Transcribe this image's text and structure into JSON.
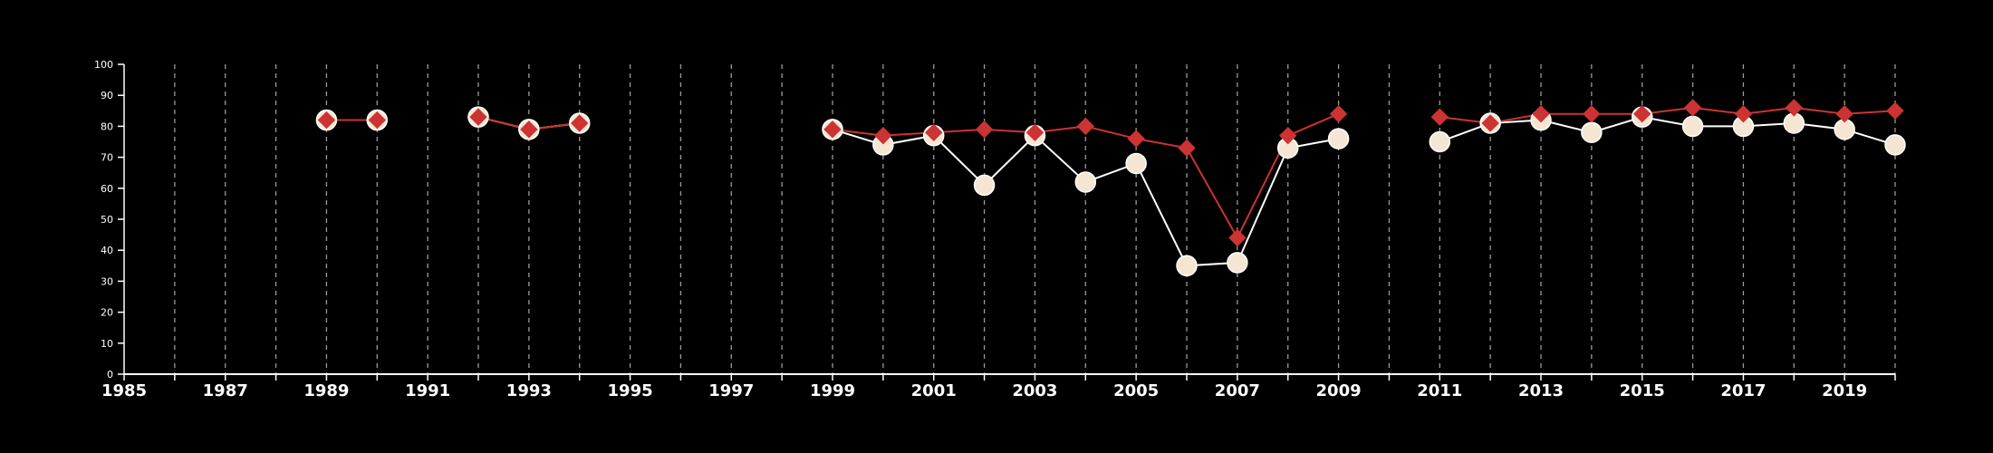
{
  "chart_data": {
    "type": "line",
    "xlim": [
      1985,
      2020
    ],
    "ylim": [
      0,
      100
    ],
    "x_ticks": [
      1985,
      1987,
      1989,
      1991,
      1993,
      1995,
      1997,
      1999,
      2001,
      2003,
      2005,
      2007,
      2009,
      2011,
      2013,
      2015,
      2017,
      2019
    ],
    "y_ticks": [
      0,
      10,
      20,
      30,
      40,
      50,
      60,
      70,
      80,
      90,
      100
    ],
    "vertical_gridlines": "dashed, every year",
    "colors": {
      "background": "#000000",
      "axis": "#ffffff",
      "grid": "#9a9a9a",
      "series_circle": "#f5e6d3",
      "series_circle_line": "#ffffff",
      "series_diamond": "#cc3333"
    },
    "series": [
      {
        "marker": "circle",
        "points": [
          [
            1989,
            82
          ],
          [
            1990,
            82
          ],
          [
            1992,
            83
          ],
          [
            1993,
            79
          ],
          [
            1994,
            81
          ],
          [
            1999,
            79
          ],
          [
            2000,
            74
          ],
          [
            2001,
            77
          ],
          [
            2002,
            61
          ],
          [
            2003,
            77
          ],
          [
            2004,
            62
          ],
          [
            2005,
            68
          ],
          [
            2006,
            35
          ],
          [
            2007,
            36
          ],
          [
            2008,
            73
          ],
          [
            2009,
            76
          ],
          [
            2011,
            75
          ],
          [
            2012,
            81
          ],
          [
            2013,
            82
          ],
          [
            2014,
            78
          ],
          [
            2015,
            83
          ],
          [
            2016,
            80
          ],
          [
            2017,
            80
          ],
          [
            2018,
            81
          ],
          [
            2019,
            79
          ],
          [
            2020,
            74
          ]
        ]
      },
      {
        "marker": "diamond",
        "points": [
          [
            1989,
            82
          ],
          [
            1990,
            82
          ],
          [
            1992,
            83
          ],
          [
            1993,
            79
          ],
          [
            1994,
            81
          ],
          [
            1999,
            79
          ],
          [
            2000,
            77
          ],
          [
            2001,
            78
          ],
          [
            2002,
            79
          ],
          [
            2003,
            78
          ],
          [
            2004,
            80
          ],
          [
            2005,
            76
          ],
          [
            2006,
            73
          ],
          [
            2007,
            44
          ],
          [
            2008,
            77
          ],
          [
            2009,
            84
          ],
          [
            2011,
            83
          ],
          [
            2012,
            81
          ],
          [
            2013,
            84
          ],
          [
            2014,
            84
          ],
          [
            2015,
            84
          ],
          [
            2016,
            86
          ],
          [
            2017,
            84
          ],
          [
            2018,
            86
          ],
          [
            2019,
            84
          ],
          [
            2020,
            85
          ]
        ]
      }
    ]
  }
}
